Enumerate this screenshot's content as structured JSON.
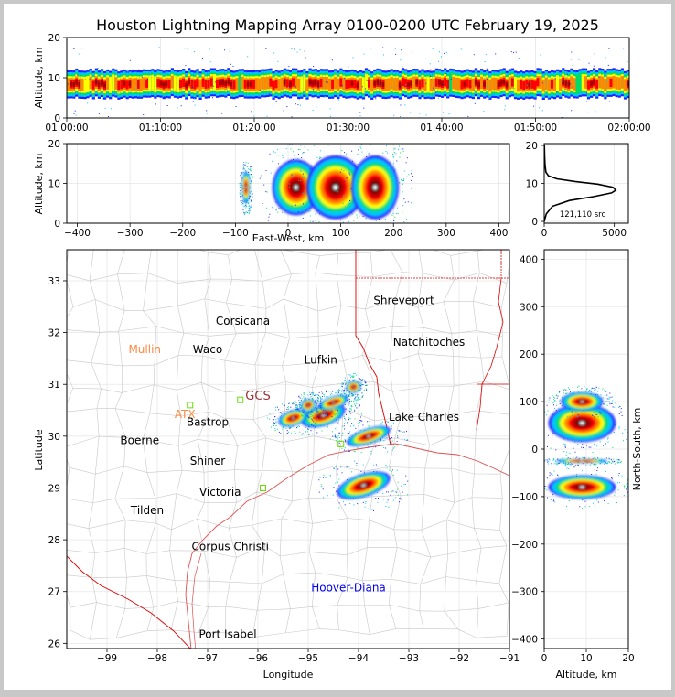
{
  "title": "Houston Lightning Mapping Array 0100-0200 UTC February 19, 2025",
  "colors": {
    "frame": "#c8c8c8",
    "panel_bg": "#ffffff",
    "county_lines": "#c8c8c8",
    "state_lines": "#dd0000",
    "coast": "#e05050",
    "density_scale": [
      "#2222ff",
      "#00c8ff",
      "#00dd66",
      "#ffff00",
      "#ff8800",
      "#ff0000",
      "#aa0000",
      "#000000",
      "#ffffff"
    ]
  },
  "chart_data": [
    {
      "id": "time_height",
      "type": "heatmap",
      "ylabel": "Altitude, km",
      "xlabel": "",
      "ylim": [
        0,
        20
      ],
      "yticks": [
        "0",
        "10",
        "20"
      ],
      "xticks": [
        "01:00:00",
        "01:10:00",
        "01:20:00",
        "01:30:00",
        "01:40:00",
        "01:50:00",
        "02:00:00"
      ],
      "xlim_minutes": [
        0,
        60
      ],
      "activity": {
        "altitude_core_km": [
          6,
          11
        ],
        "altitude_max_km": 18
      }
    },
    {
      "id": "ew_height",
      "type": "heatmap",
      "xlabel": "East-West, km",
      "ylabel": "Altitude, km",
      "xlim": [
        -420,
        420
      ],
      "ylim": [
        0,
        20
      ],
      "xticks": [
        "−400",
        "−300",
        "−200",
        "−100",
        "0",
        "100",
        "200",
        "300",
        "400"
      ],
      "yticks": [
        "0",
        "10",
        "20"
      ],
      "blobs": [
        {
          "x": 15,
          "alt": 9,
          "rx": 45,
          "ra": 7
        },
        {
          "x": 90,
          "alt": 9,
          "rx": 55,
          "ra": 8
        },
        {
          "x": 165,
          "alt": 9,
          "rx": 45,
          "ra": 8
        },
        {
          "x": -80,
          "alt": 9,
          "rx": 8,
          "ra": 4
        }
      ]
    },
    {
      "id": "alt_histogram",
      "type": "line",
      "xticks": [
        "0",
        "5000"
      ],
      "yticks": [
        "0",
        "10",
        "20"
      ],
      "xlim": [
        0,
        6000
      ],
      "ylim": [
        0,
        20
      ],
      "annotation": "121,110 src",
      "x": [
        0,
        150,
        600,
        1800,
        3500,
        4800,
        5100,
        4900,
        3800,
        2200,
        900,
        300,
        120,
        60,
        30,
        10
      ],
      "y": [
        0,
        2,
        4,
        5.5,
        6.5,
        7.5,
        8.2,
        9,
        9.8,
        10.5,
        11.2,
        12,
        13,
        15,
        17,
        20
      ]
    },
    {
      "id": "plan_view",
      "type": "scatter",
      "xlabel": "Longitude",
      "ylabel": "Latitude",
      "xlim": [
        -99.8,
        -91
      ],
      "ylim": [
        25.9,
        33.6
      ],
      "xticks": [
        "−99",
        "−98",
        "−97",
        "−96",
        "−95",
        "−94",
        "−93",
        "−92",
        "−91"
      ],
      "yticks": [
        "26",
        "27",
        "28",
        "29",
        "30",
        "31",
        "32",
        "33"
      ],
      "places": [
        {
          "name": "Shreveport",
          "lon": -93.1,
          "lat": 32.55,
          "color": "#000000"
        },
        {
          "name": "Corsicana",
          "lon": -96.3,
          "lat": 32.15,
          "color": "#000000"
        },
        {
          "name": "Natchitoches",
          "lon": -92.6,
          "lat": 31.75,
          "color": "#000000"
        },
        {
          "name": "Mullin",
          "lon": -98.25,
          "lat": 31.6,
          "color": "#ff8844"
        },
        {
          "name": "Waco",
          "lon": -97.0,
          "lat": 31.6,
          "color": "#000000"
        },
        {
          "name": "Lufkin",
          "lon": -94.75,
          "lat": 31.4,
          "color": "#000000"
        },
        {
          "name": "GCS",
          "lon": -96.0,
          "lat": 30.7,
          "color": "#993333"
        },
        {
          "name": "ATX",
          "lon": -97.45,
          "lat": 30.35,
          "color": "#ff8844"
        },
        {
          "name": "Bastrop",
          "lon": -97.0,
          "lat": 30.2,
          "color": "#000000"
        },
        {
          "name": "Lake Charles",
          "lon": -92.7,
          "lat": 30.3,
          "color": "#000000"
        },
        {
          "name": "Boerne",
          "lon": -98.35,
          "lat": 29.85,
          "color": "#000000"
        },
        {
          "name": "Shiner",
          "lon": -97.0,
          "lat": 29.45,
          "color": "#000000"
        },
        {
          "name": "Victoria",
          "lon": -96.75,
          "lat": 28.85,
          "color": "#000000"
        },
        {
          "name": "Tilden",
          "lon": -98.2,
          "lat": 28.5,
          "color": "#000000"
        },
        {
          "name": "Corpus Christi",
          "lon": -96.55,
          "lat": 27.8,
          "color": "#000000"
        },
        {
          "name": "Hoover-Diana",
          "lon": -94.2,
          "lat": 27.0,
          "color": "#0000ee"
        },
        {
          "name": "Port Isabel",
          "lon": -96.6,
          "lat": 26.1,
          "color": "#000000"
        }
      ],
      "storm_cells": [
        {
          "lon": -94.7,
          "lat": 30.4,
          "rx": 0.45,
          "ry": 0.2
        },
        {
          "lon": -95.3,
          "lat": 30.35,
          "rx": 0.3,
          "ry": 0.15
        },
        {
          "lon": -94.5,
          "lat": 30.65,
          "rx": 0.3,
          "ry": 0.12
        },
        {
          "lon": -95.0,
          "lat": 30.6,
          "rx": 0.15,
          "ry": 0.12
        },
        {
          "lon": -94.1,
          "lat": 30.95,
          "rx": 0.15,
          "ry": 0.12
        },
        {
          "lon": -93.8,
          "lat": 30.0,
          "rx": 0.45,
          "ry": 0.15
        },
        {
          "lon": -93.9,
          "lat": 29.05,
          "rx": 0.55,
          "ry": 0.22
        }
      ]
    },
    {
      "id": "ns_height",
      "type": "heatmap",
      "xlabel": "Altitude, km",
      "ylabel": "North-South, km",
      "xlim": [
        0,
        20
      ],
      "ylim": [
        -420,
        420
      ],
      "xticks": [
        "0",
        "10",
        "20"
      ],
      "yticks": [
        "−400",
        "−300",
        "−200",
        "−100",
        "0",
        "100",
        "200",
        "300",
        "400"
      ],
      "blobs": [
        {
          "alt": 9,
          "y": 55,
          "ra": 8,
          "ry": 40
        },
        {
          "alt": 9,
          "y": 100,
          "ra": 5,
          "ry": 20
        },
        {
          "alt": 9,
          "y": -25,
          "ra": 6,
          "ry": 5
        },
        {
          "alt": 9,
          "y": -80,
          "ra": 8,
          "ry": 25
        }
      ]
    }
  ]
}
